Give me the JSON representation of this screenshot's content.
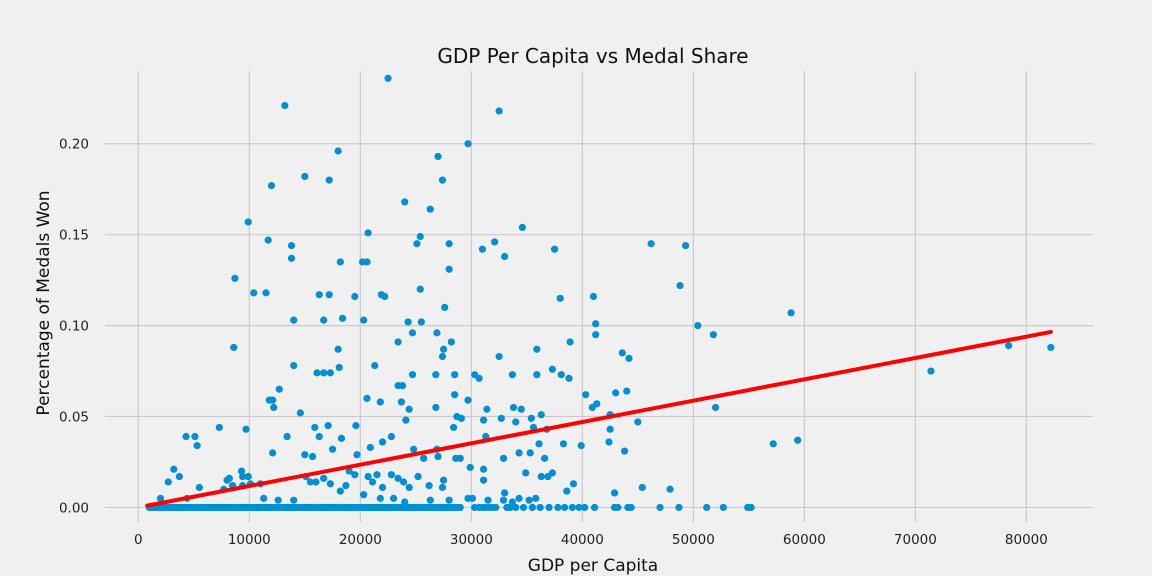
{
  "chart_data": {
    "type": "scatter",
    "title": "GDP Per Capita vs Medal Share",
    "xlabel": "GDP per Capita",
    "ylabel": "Percentage of Medals Won",
    "xlim": [
      -3000,
      86000
    ],
    "ylim": [
      -0.008,
      0.24
    ],
    "xticks": [
      0,
      10000,
      20000,
      30000,
      40000,
      50000,
      60000,
      70000,
      80000
    ],
    "yticks": [
      0.0,
      0.05,
      0.1,
      0.15,
      0.2
    ],
    "xtick_labels": [
      "0",
      "10000",
      "20000",
      "30000",
      "40000",
      "50000",
      "60000",
      "70000",
      "80000"
    ],
    "ytick_labels": [
      "0.00",
      "0.05",
      "0.10",
      "0.15",
      "0.20"
    ],
    "grid": true,
    "colors": {
      "points": "#008fd5",
      "trend": "#ff0000",
      "background": "#f0f0f0",
      "grid": "#cbcbcb"
    },
    "trend_line": {
      "x": [
        800,
        82200
      ],
      "y": [
        0.001,
        0.0965
      ]
    },
    "points": [
      [
        13200,
        0.221
      ],
      [
        22500,
        0.236
      ],
      [
        32500,
        0.218
      ],
      [
        29700,
        0.2
      ],
      [
        27000,
        0.193
      ],
      [
        18000,
        0.196
      ],
      [
        15000,
        0.182
      ],
      [
        27400,
        0.18
      ],
      [
        17200,
        0.18
      ],
      [
        12000,
        0.177
      ],
      [
        24000,
        0.168
      ],
      [
        26300,
        0.164
      ],
      [
        9900,
        0.157
      ],
      [
        34600,
        0.154
      ],
      [
        20700,
        0.151
      ],
      [
        25400,
        0.149
      ],
      [
        25100,
        0.145
      ],
      [
        28000,
        0.145
      ],
      [
        32100,
        0.146
      ],
      [
        31000,
        0.142
      ],
      [
        37500,
        0.142
      ],
      [
        46200,
        0.145
      ],
      [
        49300,
        0.144
      ],
      [
        11700,
        0.147
      ],
      [
        13800,
        0.144
      ],
      [
        13800,
        0.137
      ],
      [
        18200,
        0.135
      ],
      [
        20200,
        0.135
      ],
      [
        20600,
        0.135
      ],
      [
        33000,
        0.138
      ],
      [
        28000,
        0.131
      ],
      [
        8700,
        0.126
      ],
      [
        10400,
        0.118
      ],
      [
        11500,
        0.118
      ],
      [
        16300,
        0.117
      ],
      [
        17200,
        0.117
      ],
      [
        19500,
        0.116
      ],
      [
        21900,
        0.117
      ],
      [
        22200,
        0.116
      ],
      [
        25400,
        0.12
      ],
      [
        38000,
        0.115
      ],
      [
        41000,
        0.116
      ],
      [
        48800,
        0.122
      ],
      [
        27600,
        0.11
      ],
      [
        58800,
        0.107
      ],
      [
        14000,
        0.103
      ],
      [
        16700,
        0.103
      ],
      [
        18400,
        0.104
      ],
      [
        20300,
        0.103
      ],
      [
        24300,
        0.102
      ],
      [
        25500,
        0.102
      ],
      [
        41200,
        0.101
      ],
      [
        50400,
        0.1
      ],
      [
        51800,
        0.095
      ],
      [
        41200,
        0.095
      ],
      [
        24700,
        0.096
      ],
      [
        26900,
        0.096
      ],
      [
        23400,
        0.091
      ],
      [
        28200,
        0.091
      ],
      [
        38900,
        0.091
      ],
      [
        8600,
        0.088
      ],
      [
        18000,
        0.087
      ],
      [
        27500,
        0.087
      ],
      [
        35900,
        0.087
      ],
      [
        78400,
        0.089
      ],
      [
        82200,
        0.088
      ],
      [
        32500,
        0.083
      ],
      [
        27400,
        0.083
      ],
      [
        43600,
        0.085
      ],
      [
        44200,
        0.082
      ],
      [
        14000,
        0.078
      ],
      [
        21300,
        0.078
      ],
      [
        16100,
        0.074
      ],
      [
        16700,
        0.074
      ],
      [
        17300,
        0.074
      ],
      [
        18100,
        0.077
      ],
      [
        24700,
        0.073
      ],
      [
        26800,
        0.073
      ],
      [
        28500,
        0.073
      ],
      [
        30300,
        0.073
      ],
      [
        30700,
        0.071
      ],
      [
        33700,
        0.073
      ],
      [
        35900,
        0.073
      ],
      [
        37300,
        0.076
      ],
      [
        38100,
        0.073
      ],
      [
        38800,
        0.071
      ],
      [
        71400,
        0.075
      ],
      [
        23400,
        0.067
      ],
      [
        23800,
        0.067
      ],
      [
        12700,
        0.065
      ],
      [
        28500,
        0.062
      ],
      [
        40300,
        0.062
      ],
      [
        43000,
        0.063
      ],
      [
        44000,
        0.064
      ],
      [
        11800,
        0.059
      ],
      [
        12100,
        0.059
      ],
      [
        20600,
        0.06
      ],
      [
        21800,
        0.058
      ],
      [
        23700,
        0.058
      ],
      [
        29700,
        0.059
      ],
      [
        12200,
        0.055
      ],
      [
        31400,
        0.054
      ],
      [
        33800,
        0.055
      ],
      [
        34500,
        0.054
      ],
      [
        40900,
        0.055
      ],
      [
        41300,
        0.057
      ],
      [
        52000,
        0.055
      ],
      [
        14600,
        0.052
      ],
      [
        24400,
        0.054
      ],
      [
        26800,
        0.055
      ],
      [
        28700,
        0.05
      ],
      [
        29100,
        0.049
      ],
      [
        32700,
        0.049
      ],
      [
        31100,
        0.048
      ],
      [
        34000,
        0.047
      ],
      [
        35400,
        0.049
      ],
      [
        36300,
        0.051
      ],
      [
        42500,
        0.051
      ],
      [
        45000,
        0.047
      ],
      [
        24100,
        0.048
      ],
      [
        7300,
        0.044
      ],
      [
        9700,
        0.043
      ],
      [
        15900,
        0.044
      ],
      [
        17100,
        0.045
      ],
      [
        19600,
        0.045
      ],
      [
        28400,
        0.044
      ],
      [
        35600,
        0.044
      ],
      [
        36800,
        0.043
      ],
      [
        42500,
        0.043
      ],
      [
        4300,
        0.039
      ],
      [
        5100,
        0.039
      ],
      [
        13400,
        0.039
      ],
      [
        16300,
        0.039
      ],
      [
        18300,
        0.038
      ],
      [
        22800,
        0.039
      ],
      [
        31300,
        0.039
      ],
      [
        5300,
        0.034
      ],
      [
        22000,
        0.036
      ],
      [
        17500,
        0.032
      ],
      [
        20900,
        0.033
      ],
      [
        24800,
        0.032
      ],
      [
        26900,
        0.032
      ],
      [
        36100,
        0.035
      ],
      [
        38300,
        0.035
      ],
      [
        39900,
        0.034
      ],
      [
        42400,
        0.036
      ],
      [
        57200,
        0.035
      ],
      [
        59400,
        0.037
      ],
      [
        12100,
        0.03
      ],
      [
        15000,
        0.029
      ],
      [
        15700,
        0.028
      ],
      [
        19700,
        0.029
      ],
      [
        25700,
        0.027
      ],
      [
        27000,
        0.028
      ],
      [
        28600,
        0.027
      ],
      [
        29000,
        0.027
      ],
      [
        32900,
        0.027
      ],
      [
        34300,
        0.03
      ],
      [
        35300,
        0.03
      ],
      [
        36600,
        0.027
      ],
      [
        43800,
        0.031
      ],
      [
        2000,
        0.005
      ],
      [
        3200,
        0.021
      ],
      [
        3700,
        0.017
      ],
      [
        4400,
        0.005
      ],
      [
        2700,
        0.014
      ],
      [
        5500,
        0.011
      ],
      [
        8000,
        0.015
      ],
      [
        8200,
        0.016
      ],
      [
        9300,
        0.02
      ],
      [
        9400,
        0.017
      ],
      [
        9900,
        0.017
      ],
      [
        10100,
        0.013
      ],
      [
        7700,
        0.01
      ],
      [
        8500,
        0.012
      ],
      [
        9400,
        0.012
      ],
      [
        11000,
        0.013
      ],
      [
        11300,
        0.005
      ],
      [
        12600,
        0.004
      ],
      [
        14000,
        0.004
      ],
      [
        15100,
        0.017
      ],
      [
        15500,
        0.014
      ],
      [
        16000,
        0.014
      ],
      [
        16700,
        0.016
      ],
      [
        17300,
        0.013
      ],
      [
        18200,
        0.009
      ],
      [
        18700,
        0.012
      ],
      [
        19000,
        0.02
      ],
      [
        19500,
        0.018
      ],
      [
        20300,
        0.007
      ],
      [
        20700,
        0.017
      ],
      [
        21100,
        0.014
      ],
      [
        21500,
        0.018
      ],
      [
        22000,
        0.011
      ],
      [
        22800,
        0.018
      ],
      [
        23400,
        0.016
      ],
      [
        23900,
        0.014
      ],
      [
        24400,
        0.011
      ],
      [
        25200,
        0.017
      ],
      [
        26200,
        0.012
      ],
      [
        27400,
        0.011
      ],
      [
        27500,
        0.015
      ],
      [
        29900,
        0.022
      ],
      [
        31100,
        0.021
      ],
      [
        31100,
        0.015
      ],
      [
        31500,
        0.004
      ],
      [
        33000,
        0.008
      ],
      [
        33700,
        0.003
      ],
      [
        34300,
        0.005
      ],
      [
        34900,
        0.019
      ],
      [
        35200,
        0.004
      ],
      [
        36300,
        0.017
      ],
      [
        36900,
        0.017
      ],
      [
        37300,
        0.019
      ],
      [
        38600,
        0.009
      ],
      [
        39200,
        0.013
      ],
      [
        42900,
        0.008
      ],
      [
        45400,
        0.011
      ],
      [
        47900,
        0.01
      ],
      [
        21800,
        0.005
      ],
      [
        23000,
        0.005
      ],
      [
        24000,
        0.003
      ],
      [
        26300,
        0.004
      ],
      [
        28000,
        0.004
      ],
      [
        29700,
        0.005
      ],
      [
        30100,
        0.005
      ],
      [
        32900,
        0.004
      ],
      [
        35800,
        0.005
      ]
    ],
    "baseline_points": {
      "y": 0.0,
      "x": [
        1000,
        1200,
        1400,
        1600,
        1800,
        2000,
        2200,
        2400,
        2600,
        2800,
        3000,
        3200,
        3400,
        3600,
        3800,
        4000,
        4200,
        4400,
        4600,
        4800,
        5000,
        5200,
        5400,
        5600,
        5800,
        6000,
        6200,
        6400,
        6600,
        6800,
        7000,
        7200,
        7400,
        7600,
        7800,
        8000,
        8200,
        8400,
        8600,
        8800,
        9000,
        9200,
        9400,
        9600,
        9800,
        10000,
        10200,
        10400,
        10600,
        10800,
        11000,
        11200,
        11400,
        11600,
        11800,
        12000,
        12200,
        12400,
        12600,
        12800,
        13000,
        13200,
        13400,
        13600,
        13800,
        14000,
        14200,
        14400,
        14600,
        14800,
        15000,
        15200,
        15400,
        15600,
        15800,
        16000,
        16200,
        16400,
        16600,
        16800,
        17000,
        17200,
        17400,
        17600,
        17800,
        18000,
        18200,
        18400,
        18600,
        18800,
        19000,
        19200,
        19400,
        19600,
        19800,
        20000,
        20200,
        20400,
        20600,
        20800,
        21000,
        21200,
        21400,
        21600,
        21800,
        22000,
        22200,
        22400,
        22600,
        22800,
        23000,
        23200,
        23400,
        23600,
        23800,
        24000,
        24200,
        24400,
        24600,
        24800,
        25000,
        25200,
        25400,
        25600,
        25800,
        26000,
        26200,
        26400,
        26600,
        26800,
        27000,
        27200,
        27400,
        27600,
        27800,
        28000,
        28200,
        28400,
        28600,
        28800,
        29000,
        30300,
        30700,
        31000,
        31300,
        31600,
        31900,
        32200,
        33200,
        33500,
        34000,
        34700,
        35500,
        36200,
        37000,
        37800,
        38400,
        39100,
        39700,
        40200,
        41100,
        42900,
        43200,
        44100,
        44400,
        47000,
        48700,
        51200,
        52700,
        54900,
        55200
      ]
    }
  }
}
